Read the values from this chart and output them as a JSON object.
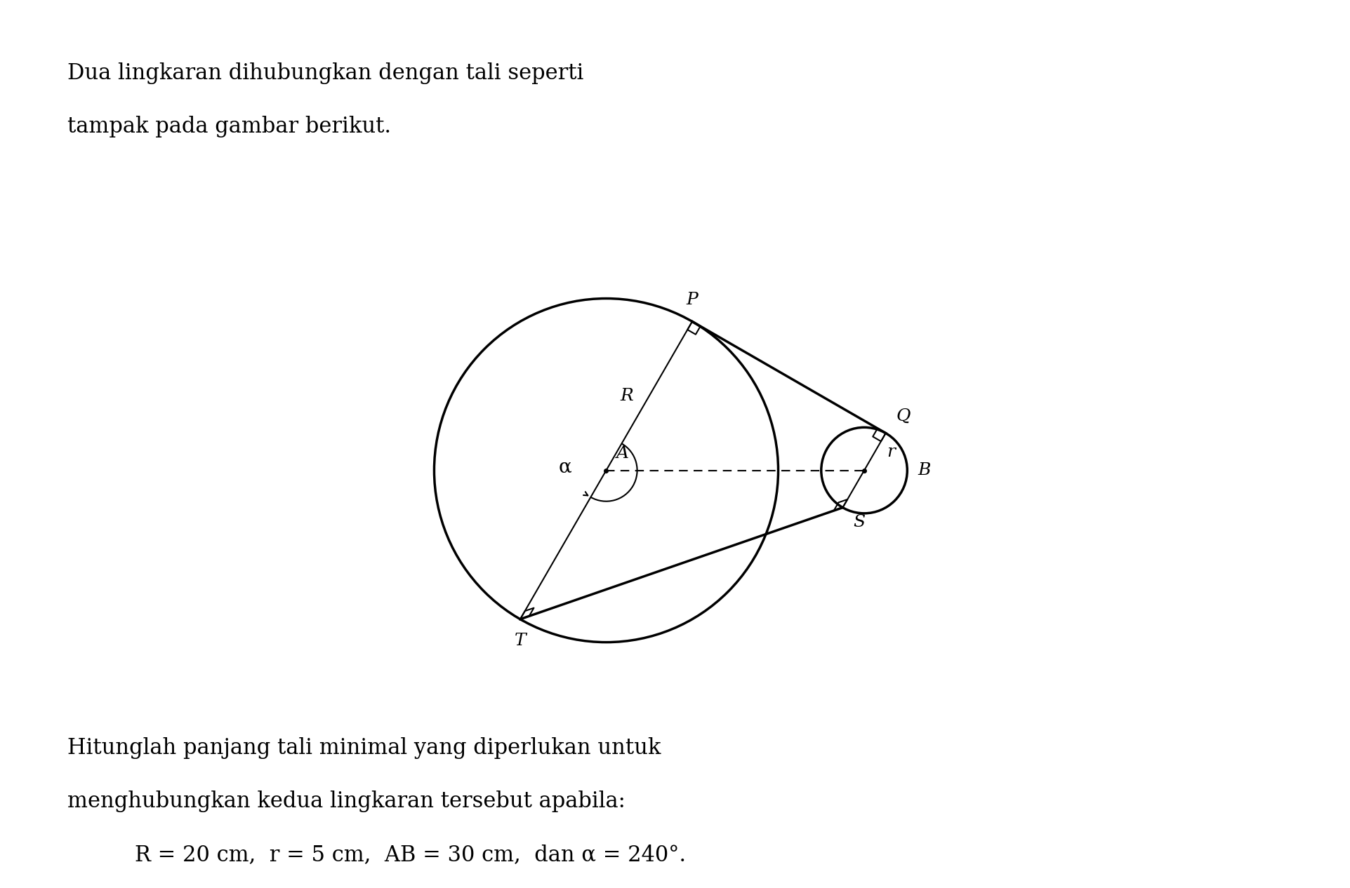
{
  "title_line1": "Dua lingkaran dihubungkan dengan tali seperti",
  "title_line2": "tampak pada gambar berikut.",
  "bottom_text_line1": "Hitunglah panjang tali minimal yang diperlukan untuk",
  "bottom_text_line2": "menghubungkan kedua lingkaran tersebut apabila:",
  "formula_text": "R = 20 cm,  r = 5 cm,  AB = 30 cm,  dan α = 240°.",
  "bg_color": "#ffffff",
  "text_color": "#000000",
  "fig_width": 19.23,
  "fig_height": 12.66,
  "dpi": 100
}
